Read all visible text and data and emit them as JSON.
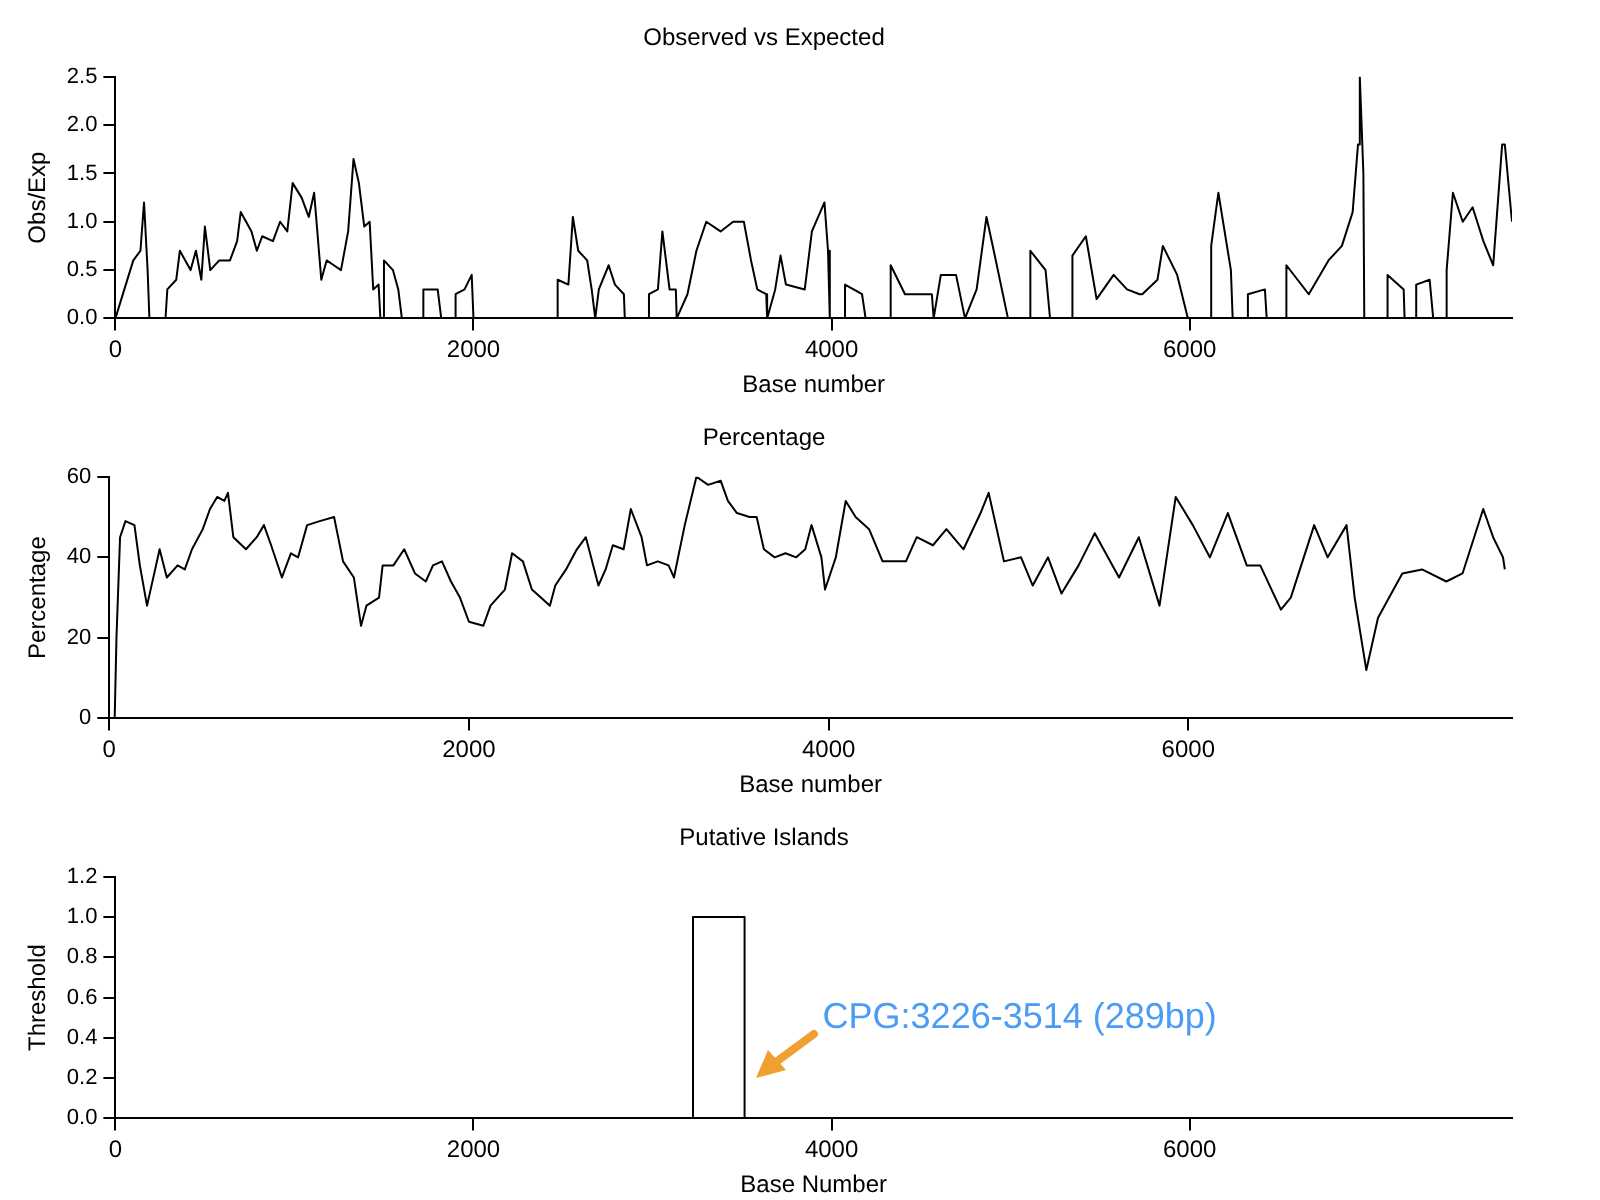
{
  "chart_data": [
    {
      "type": "line",
      "title": "Observed vs Expected",
      "xlabel": "Base number",
      "ylabel": "Obs/Exp",
      "color": "#000000",
      "grid": false,
      "xlim": [
        0,
        7800
      ],
      "xticks": [
        0,
        2000,
        4000,
        6000
      ],
      "ylim": [
        0,
        2.5
      ],
      "yticks": [
        {
          "value": 0,
          "label": "0.0"
        },
        {
          "value": 0.5,
          "label": "0.5"
        },
        {
          "value": 1,
          "label": "1.0"
        },
        {
          "value": 1.5,
          "label": "1.5"
        },
        {
          "value": 2,
          "label": "2.0"
        },
        {
          "value": 2.5,
          "label": "2.5"
        }
      ],
      "x": [
        0,
        50,
        100,
        140,
        160,
        180,
        190,
        280,
        290,
        340,
        360,
        420,
        450,
        480,
        500,
        530,
        580,
        640,
        680,
        700,
        760,
        790,
        820,
        880,
        920,
        960,
        990,
        1040,
        1080,
        1110,
        1150,
        1180,
        1220,
        1260,
        1300,
        1330,
        1360,
        1390,
        1420,
        1440,
        1470,
        1480,
        1490,
        1500,
        1550,
        1580,
        1600,
        1720,
        1720,
        1800,
        1820,
        1900,
        1900,
        1950,
        1990,
        2000,
        2470,
        2470,
        2530,
        2555,
        2585,
        2635,
        2660,
        2680,
        2700,
        2755,
        2790,
        2840,
        2845,
        2980,
        2980,
        3030,
        3055,
        3095,
        3130,
        3135,
        3195,
        3245,
        3300,
        3380,
        3450,
        3510,
        3550,
        3585,
        3635,
        3640,
        3685,
        3715,
        3745,
        3850,
        3890,
        3960,
        3980,
        3990,
        4075,
        4075,
        4170,
        4190,
        4330,
        4330,
        4410,
        4560,
        4570,
        4610,
        4695,
        4745,
        4810,
        4865,
        4900,
        4985,
        5110,
        5110,
        5195,
        5220,
        5345,
        5345,
        5420,
        5480,
        5575,
        5650,
        5720,
        5735,
        5820,
        5850,
        5930,
        5990,
        6120,
        6120,
        6160,
        6230,
        6240,
        6325,
        6325,
        6420,
        6430,
        6540,
        6540,
        6665,
        6775,
        6850,
        6910,
        6940,
        6950,
        6970,
        6975,
        7105,
        7105,
        7195,
        7200,
        7265,
        7265,
        7340,
        7360,
        7435,
        7435,
        7470,
        7525,
        7580,
        7640,
        7695,
        7745,
        7760,
        7800
      ],
      "values": [
        0,
        0.3,
        0.6,
        0.7,
        1.2,
        0.5,
        0,
        0,
        0.3,
        0.4,
        0.7,
        0.5,
        0.7,
        0.4,
        0.95,
        0.5,
        0.6,
        0.6,
        0.8,
        1.1,
        0.9,
        0.7,
        0.85,
        0.8,
        1.0,
        0.9,
        1.4,
        1.25,
        1.05,
        1.3,
        0.4,
        0.6,
        0.55,
        0.5,
        0.9,
        1.65,
        1.4,
        0.95,
        1.0,
        0.3,
        0.35,
        0,
        0,
        0.6,
        0.5,
        0.3,
        0,
        0,
        0.3,
        0.3,
        0,
        0,
        0.25,
        0.3,
        0.45,
        0,
        0,
        0.4,
        0.35,
        1.05,
        0.7,
        0.6,
        0.3,
        0,
        0.3,
        0.55,
        0.35,
        0.25,
        0,
        0,
        0.25,
        0.3,
        0.9,
        0.3,
        0.3,
        0,
        0.25,
        0.7,
        1.0,
        0.9,
        1.0,
        1.0,
        0.6,
        0.3,
        0.25,
        0,
        0.3,
        0.65,
        0.35,
        0.3,
        0.9,
        1.2,
        0.7,
        0,
        0,
        0.35,
        0.25,
        0,
        0,
        0.55,
        0.25,
        0.25,
        0,
        0.45,
        0.45,
        0,
        0.3,
        1.05,
        0.75,
        0,
        0,
        0.7,
        0.5,
        0,
        0,
        0.65,
        0.85,
        0.2,
        0.45,
        0.3,
        0.25,
        0.25,
        0.4,
        0.75,
        0.45,
        0,
        0,
        0.75,
        1.3,
        0.5,
        0,
        0,
        0.25,
        0.3,
        0,
        0,
        0.55,
        0.25,
        0.6,
        0.75,
        1.1,
        1.8,
        2.5,
        1.5,
        0,
        0,
        0.45,
        0.3,
        0,
        0,
        0.35,
        0.4,
        0,
        0,
        0.5,
        1.3,
        1.0,
        1.15,
        0.8,
        0.55,
        1.8,
        1.8,
        1.0
      ]
    },
    {
      "type": "line",
      "title": "Percentage",
      "xlabel": "Base number",
      "ylabel": "Percentage",
      "color": "#000000",
      "grid": false,
      "xlim": [
        0,
        7800
      ],
      "xticks": [
        0,
        2000,
        4000,
        6000
      ],
      "ylim": [
        0,
        60
      ],
      "yticks": [
        0,
        20,
        40,
        60
      ],
      "x": [
        30,
        40,
        60,
        90,
        140,
        170,
        210,
        260,
        280,
        320,
        380,
        420,
        460,
        520,
        560,
        600,
        640,
        660,
        690,
        760,
        820,
        860,
        900,
        960,
        1010,
        1050,
        1100,
        1170,
        1250,
        1300,
        1360,
        1400,
        1430,
        1500,
        1520,
        1580,
        1640,
        1700,
        1760,
        1800,
        1850,
        1900,
        1950,
        2000,
        2080,
        2120,
        2200,
        2240,
        2300,
        2350,
        2400,
        2450,
        2480,
        2540,
        2600,
        2650,
        2720,
        2760,
        2800,
        2860,
        2900,
        2960,
        2990,
        3050,
        3110,
        3140,
        3200,
        3265,
        3330,
        3400,
        3440,
        3490,
        3560,
        3600,
        3640,
        3700,
        3760,
        3820,
        3870,
        3905,
        3960,
        3980,
        4040,
        4095,
        4150,
        4225,
        4300,
        4430,
        4490,
        4580,
        4655,
        4750,
        4845,
        4890,
        4975,
        5070,
        5135,
        5220,
        5295,
        5390,
        5480,
        5615,
        5725,
        5840,
        5930,
        6025,
        6120,
        6220,
        6325,
        6400,
        6515,
        6570,
        6700,
        6775,
        6880,
        6925,
        6990,
        7055,
        7190,
        7300,
        7435,
        7525,
        7640,
        7695,
        7750,
        7760
      ],
      "values": [
        0,
        20,
        45,
        49,
        48,
        38,
        28,
        38,
        42,
        35,
        38,
        37,
        42,
        47,
        52,
        55,
        54,
        56,
        45,
        42,
        45,
        48,
        43,
        35,
        41,
        40,
        48,
        49,
        50,
        39,
        35,
        23,
        28,
        30,
        38,
        38,
        42,
        36,
        34,
        38,
        39,
        34,
        30,
        24,
        23,
        28,
        32,
        41,
        39,
        32,
        30,
        28,
        33,
        37,
        42,
        45,
        33,
        37,
        43,
        42,
        52,
        45,
        38,
        39,
        38,
        35,
        48,
        60,
        58,
        59,
        54,
        51,
        50,
        50,
        42,
        40,
        41,
        40,
        42,
        48,
        40,
        32,
        40,
        54,
        50,
        47,
        39,
        39,
        45,
        43,
        47,
        42,
        51,
        56,
        39,
        40,
        33,
        40,
        31,
        38,
        46,
        35,
        45,
        28,
        55,
        48,
        40,
        51,
        38,
        38,
        27,
        30,
        48,
        40,
        48,
        30,
        12,
        25,
        36,
        37,
        34,
        36,
        52,
        45,
        40,
        37
      ]
    },
    {
      "type": "line",
      "title": "Putative Islands",
      "xlabel": "Base Number",
      "ylabel": "Threshold",
      "color": "#000000",
      "grid": false,
      "xlim": [
        0,
        7800
      ],
      "xticks": [
        0,
        2000,
        4000,
        6000
      ],
      "ylim": [
        0,
        1.2
      ],
      "yticks": [
        {
          "value": 0,
          "label": "0.0"
        },
        {
          "value": 0.2,
          "label": "0.2"
        },
        {
          "value": 0.4,
          "label": "0.4"
        },
        {
          "value": 0.6,
          "label": "0.6"
        },
        {
          "value": 0.8,
          "label": "0.8"
        },
        {
          "value": 1,
          "label": "1.0"
        },
        {
          "value": 1.2,
          "label": "1.2"
        }
      ],
      "x": [
        0,
        3226,
        3226,
        3514,
        3514,
        7800
      ],
      "values": [
        0,
        0,
        1,
        1,
        0,
        0
      ],
      "annotations": [
        {
          "text": "CPG:3226-3514 (289bp)",
          "x": 3514,
          "y": 0.2
        }
      ]
    }
  ]
}
